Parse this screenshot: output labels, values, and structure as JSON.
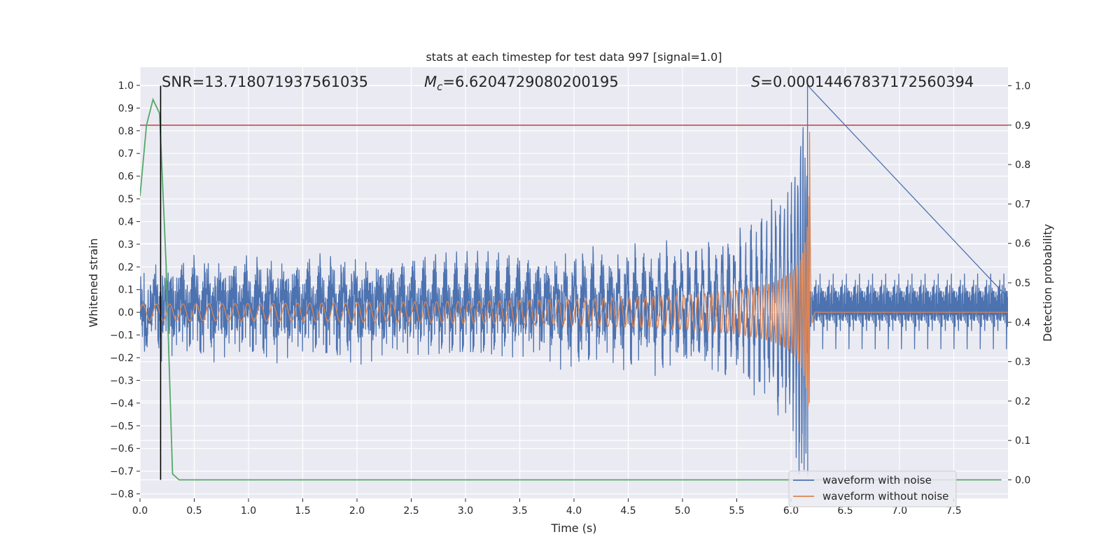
{
  "chart_data": {
    "type": "line",
    "title": "stats at each timestep for test data 997 [signal=1.0]",
    "xlabel": "Time (s)",
    "ylabel": "Whitened strain",
    "y2label": "Detection probability",
    "xlim": [
      0.0,
      8.0
    ],
    "ylim": [
      -0.82,
      1.08
    ],
    "y2lim": [
      -0.047,
      1.047
    ],
    "x_ticks": [
      "0.0",
      "0.5",
      "1.0",
      "1.5",
      "2.0",
      "2.5",
      "3.0",
      "3.5",
      "4.0",
      "4.5",
      "5.0",
      "5.5",
      "6.0",
      "6.5",
      "7.0",
      "7.5"
    ],
    "y_ticks": [
      "1.0",
      "0.9",
      "0.8",
      "0.7",
      "0.6",
      "0.5",
      "0.4",
      "0.3",
      "0.2",
      "0.1",
      "0.0",
      "−0.1",
      "−0.2",
      "−0.3",
      "−0.4",
      "−0.5",
      "−0.6",
      "−0.7",
      "−0.8"
    ],
    "y2_ticks": [
      "1.0",
      "0.9",
      "0.8",
      "0.7",
      "0.6",
      "0.5",
      "0.4",
      "0.3",
      "0.2",
      "0.1",
      "0.0"
    ],
    "grid": true,
    "annotations": {
      "snr": "SNR=13.718071937561035",
      "mc_symbol": "M",
      "mc_sub": "c",
      "mc_value": "=6.6204729080200195",
      "s_symbol": "S",
      "s_value": "=0.00014467837172560394"
    },
    "series": [
      {
        "name": "waveform with noise",
        "color": "#4c72b0",
        "axis": "left",
        "noise_amplitude": 0.22,
        "merger_time": 6.15
      },
      {
        "name": "waveform without noise",
        "color": "#dd8452",
        "axis": "left",
        "merger_time": 6.17
      },
      {
        "name": "detection probability",
        "color": "#55a868",
        "axis": "right",
        "x": [
          0.0,
          0.06,
          0.12,
          0.18,
          0.24,
          0.3,
          0.36,
          7.94
        ],
        "values": [
          0.72,
          0.9,
          0.965,
          0.93,
          0.55,
          0.015,
          0.0,
          0.0
        ]
      }
    ],
    "threshold": {
      "value": 0.9,
      "axis": "right",
      "color": "#c44e52"
    },
    "marker_line": {
      "x": 0.19,
      "color": "#000000"
    },
    "legend": {
      "position": "bottom-right",
      "entries": [
        "waveform with noise",
        "waveform without noise"
      ]
    }
  }
}
